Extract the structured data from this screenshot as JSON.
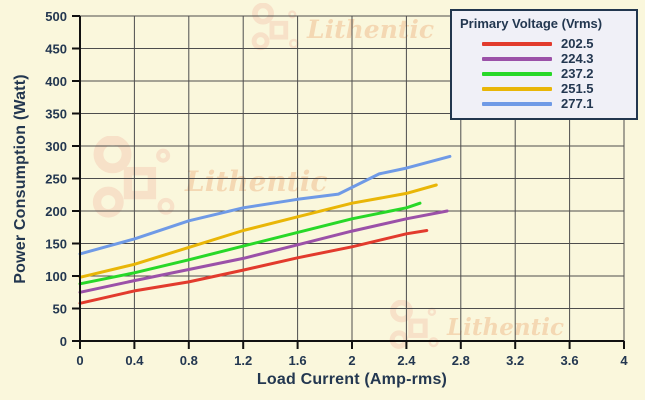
{
  "watermark": {
    "text": "Lithentic"
  },
  "colors": {
    "background": "#faf7dc",
    "grid": "#4d4d4d",
    "axis": "#111111",
    "text": "#233750",
    "legend_bg": "#f0f0f7",
    "legend_border": "#22364e",
    "watermark": "#f6d8ba"
  },
  "chart_data": {
    "type": "line",
    "title": "",
    "xlabel": "Load Current (Amp-rms)",
    "ylabel": "Power Consumption (Watt)",
    "legend_title": "Primary Voltage (Vrms)",
    "legend_position": "top-right",
    "grid": true,
    "xlim": [
      0,
      4
    ],
    "ylim": [
      0,
      500
    ],
    "x_ticks": [
      0,
      0.4,
      0.8,
      1.2,
      1.6,
      2,
      2.4,
      2.8,
      3.2,
      3.6,
      4
    ],
    "x_tick_labels": [
      "0",
      "0.4",
      "0.8",
      "1.2",
      "1.6",
      "2",
      "2.4",
      "2.8",
      "3.2",
      "3.6",
      "4"
    ],
    "y_ticks": [
      0,
      50,
      100,
      150,
      200,
      250,
      300,
      350,
      400,
      450,
      500
    ],
    "y_tick_labels": [
      "0",
      "50",
      "100",
      "150",
      "200",
      "250",
      "300",
      "350",
      "400",
      "450",
      "500"
    ],
    "series": [
      {
        "name": "202.5",
        "color": "#e23b2d",
        "points": [
          [
            0,
            58
          ],
          [
            0.4,
            77
          ],
          [
            0.8,
            91
          ],
          [
            1.2,
            109
          ],
          [
            1.6,
            128
          ],
          [
            2,
            145
          ],
          [
            2.4,
            165
          ],
          [
            2.55,
            170
          ]
        ]
      },
      {
        "name": "224.3",
        "color": "#9b51a8",
        "points": [
          [
            0,
            75
          ],
          [
            0.4,
            93
          ],
          [
            0.8,
            110
          ],
          [
            1.2,
            127
          ],
          [
            1.6,
            148
          ],
          [
            2,
            169
          ],
          [
            2.4,
            188
          ],
          [
            2.7,
            200
          ]
        ]
      },
      {
        "name": "237.2",
        "color": "#28d828",
        "points": [
          [
            0,
            88
          ],
          [
            0.4,
            105
          ],
          [
            0.8,
            125
          ],
          [
            1.2,
            146
          ],
          [
            1.6,
            167
          ],
          [
            2,
            188
          ],
          [
            2.4,
            205
          ],
          [
            2.5,
            212
          ]
        ]
      },
      {
        "name": "251.5",
        "color": "#e9b607",
        "points": [
          [
            0,
            98
          ],
          [
            0.4,
            118
          ],
          [
            0.8,
            144
          ],
          [
            1.2,
            170
          ],
          [
            1.6,
            191
          ],
          [
            2,
            212
          ],
          [
            2.4,
            227
          ],
          [
            2.62,
            240
          ]
        ]
      },
      {
        "name": "277.1",
        "color": "#6f9ae6",
        "points": [
          [
            0,
            134
          ],
          [
            0.4,
            157
          ],
          [
            0.8,
            185
          ],
          [
            1.2,
            205
          ],
          [
            1.6,
            218
          ],
          [
            1.9,
            226
          ],
          [
            2.2,
            257
          ],
          [
            2.4,
            266
          ],
          [
            2.72,
            284
          ]
        ]
      }
    ]
  }
}
